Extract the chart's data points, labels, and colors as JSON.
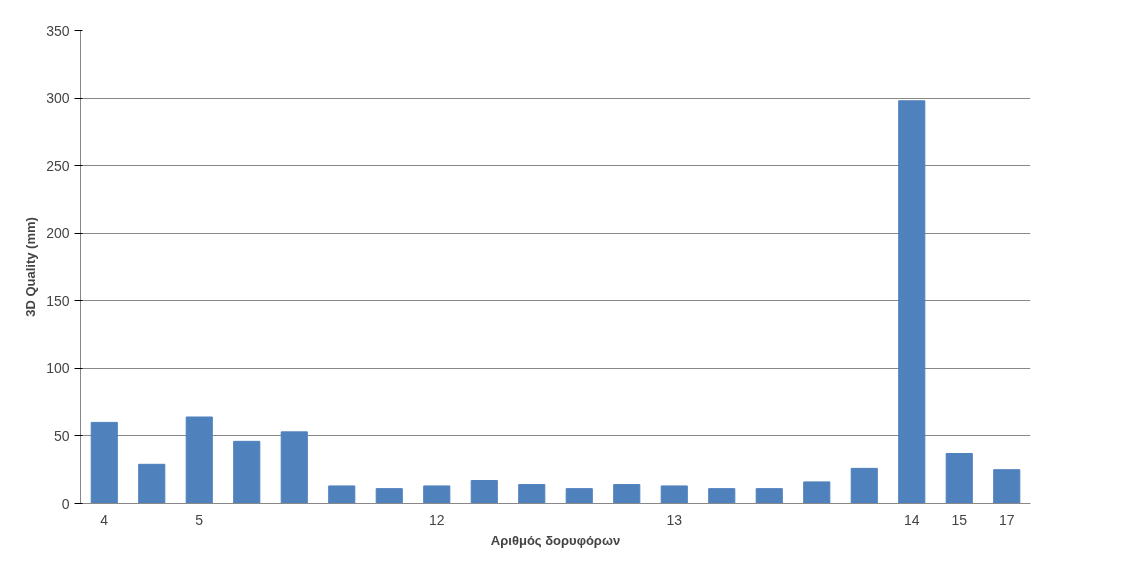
{
  "chart_data": {
    "type": "bar",
    "xlabel": "Αριθμός δορυφόρων",
    "ylabel": "3D Quality (mm)",
    "categories": [
      "4",
      null,
      "5",
      null,
      null,
      null,
      null,
      "12",
      null,
      null,
      null,
      null,
      "13",
      null,
      null,
      null,
      null,
      "14",
      "15",
      "17"
    ],
    "values": [
      60,
      29,
      64,
      46,
      53,
      13,
      11,
      13,
      17,
      14,
      11,
      14,
      13,
      11,
      11,
      16,
      26,
      298,
      37,
      25
    ],
    "color": "#4f81bd",
    "ylim": [
      0,
      350
    ],
    "yticks": [
      0,
      50,
      100,
      150,
      200,
      250,
      300,
      350
    ],
    "grid": "y"
  }
}
